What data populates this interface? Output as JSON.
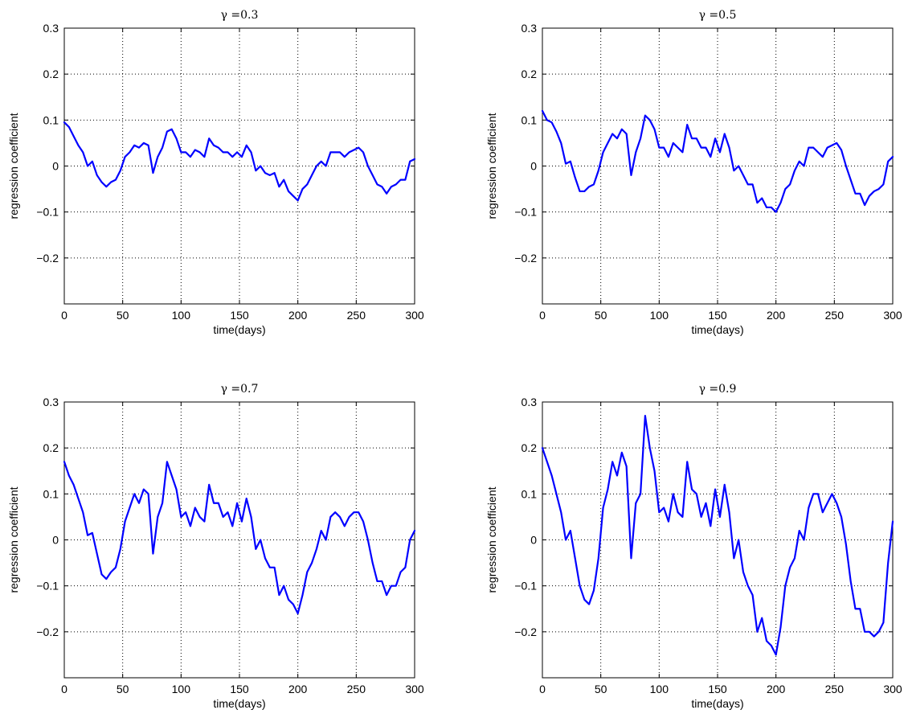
{
  "chart_data": [
    {
      "type": "line",
      "title": "γ =0.3",
      "xlabel": "time(days)",
      "ylabel": "regression coefficient",
      "xlim": [
        0,
        300
      ],
      "ylim": [
        -0.3,
        0.3
      ],
      "xticks": [
        "0",
        "50",
        "100",
        "150",
        "200",
        "250",
        "300"
      ],
      "yticks": [
        "0.3",
        "0.2",
        "0.1",
        "0",
        "−0.1",
        "−0.2"
      ],
      "grid": true,
      "color": "#0000ff",
      "series": [
        {
          "x": [
            0,
            4,
            8,
            12,
            16,
            20,
            24,
            28,
            32,
            36,
            40,
            44,
            48,
            52,
            56,
            60,
            64,
            68,
            72,
            76,
            80,
            84,
            88,
            92,
            96,
            100,
            104,
            108,
            112,
            116,
            120,
            124,
            128,
            132,
            136,
            140,
            144,
            148,
            152,
            156,
            160,
            164,
            168,
            172,
            176,
            180,
            184,
            188,
            192,
            196,
            200,
            204,
            208,
            212,
            216,
            220,
            224,
            228,
            232,
            236,
            240,
            244,
            248,
            252,
            256,
            260,
            264,
            268,
            272,
            276,
            280,
            284,
            288,
            292,
            296,
            300
          ],
          "y": [
            0.095,
            0.085,
            0.065,
            0.045,
            0.03,
            0.0,
            0.01,
            -0.02,
            -0.035,
            -0.045,
            -0.035,
            -0.03,
            -0.01,
            0.02,
            0.03,
            0.045,
            0.04,
            0.05,
            0.045,
            -0.015,
            0.02,
            0.04,
            0.075,
            0.08,
            0.06,
            0.03,
            0.03,
            0.02,
            0.035,
            0.03,
            0.02,
            0.06,
            0.045,
            0.04,
            0.03,
            0.03,
            0.02,
            0.03,
            0.02,
            0.045,
            0.03,
            -0.01,
            0.0,
            -0.015,
            -0.02,
            -0.015,
            -0.045,
            -0.03,
            -0.055,
            -0.065,
            -0.075,
            -0.05,
            -0.04,
            -0.02,
            0.0,
            0.01,
            0.0,
            0.03,
            0.03,
            0.03,
            0.02,
            0.03,
            0.035,
            0.04,
            0.03,
            0.0,
            -0.02,
            -0.04,
            -0.045,
            -0.06,
            -0.045,
            -0.04,
            -0.03,
            -0.03,
            0.01,
            0.015
          ]
        }
      ]
    },
    {
      "type": "line",
      "title": "γ =0.5",
      "xlabel": "time(days)",
      "ylabel": "regression coefficient",
      "xlim": [
        0,
        300
      ],
      "ylim": [
        -0.3,
        0.3
      ],
      "xticks": [
        "0",
        "50",
        "100",
        "150",
        "200",
        "250",
        "300"
      ],
      "yticks": [
        "0.3",
        "0.2",
        "0.1",
        "0",
        "−0.1",
        "−0.2"
      ],
      "grid": true,
      "color": "#0000ff",
      "series": [
        {
          "x": [
            0,
            4,
            8,
            12,
            16,
            20,
            24,
            28,
            32,
            36,
            40,
            44,
            48,
            52,
            56,
            60,
            64,
            68,
            72,
            76,
            80,
            84,
            88,
            92,
            96,
            100,
            104,
            108,
            112,
            116,
            120,
            124,
            128,
            132,
            136,
            140,
            144,
            148,
            152,
            156,
            160,
            164,
            168,
            172,
            176,
            180,
            184,
            188,
            192,
            196,
            200,
            204,
            208,
            212,
            216,
            220,
            224,
            228,
            232,
            236,
            240,
            244,
            248,
            252,
            256,
            260,
            264,
            268,
            272,
            276,
            280,
            284,
            288,
            292,
            296,
            300
          ],
          "y": [
            0.12,
            0.1,
            0.095,
            0.075,
            0.05,
            0.005,
            0.01,
            -0.025,
            -0.055,
            -0.055,
            -0.045,
            -0.04,
            -0.01,
            0.03,
            0.05,
            0.07,
            0.06,
            0.08,
            0.07,
            -0.02,
            0.03,
            0.06,
            0.11,
            0.1,
            0.08,
            0.04,
            0.04,
            0.02,
            0.05,
            0.04,
            0.03,
            0.09,
            0.06,
            0.06,
            0.04,
            0.04,
            0.02,
            0.06,
            0.03,
            0.07,
            0.04,
            -0.01,
            0.0,
            -0.02,
            -0.04,
            -0.04,
            -0.08,
            -0.07,
            -0.09,
            -0.09,
            -0.1,
            -0.08,
            -0.05,
            -0.04,
            -0.01,
            0.01,
            0.0,
            0.04,
            0.04,
            0.03,
            0.02,
            0.04,
            0.045,
            0.05,
            0.035,
            0.0,
            -0.03,
            -0.06,
            -0.06,
            -0.085,
            -0.065,
            -0.055,
            -0.05,
            -0.04,
            0.01,
            0.02
          ]
        }
      ]
    },
    {
      "type": "line",
      "title": "γ =0.7",
      "xlabel": "time(days)",
      "ylabel": "regression coefficient",
      "xlim": [
        0,
        300
      ],
      "ylim": [
        -0.3,
        0.3
      ],
      "xticks": [
        "0",
        "50",
        "100",
        "150",
        "200",
        "250",
        "300"
      ],
      "yticks": [
        "0.3",
        "0.2",
        "0.1",
        "0",
        "−0.1",
        "−0.2"
      ],
      "grid": true,
      "color": "#0000ff",
      "series": [
        {
          "x": [
            0,
            4,
            8,
            12,
            16,
            20,
            24,
            28,
            32,
            36,
            40,
            44,
            48,
            52,
            56,
            60,
            64,
            68,
            72,
            76,
            80,
            84,
            88,
            92,
            96,
            100,
            104,
            108,
            112,
            116,
            120,
            124,
            128,
            132,
            136,
            140,
            144,
            148,
            152,
            156,
            160,
            164,
            168,
            172,
            176,
            180,
            184,
            188,
            192,
            196,
            200,
            204,
            208,
            212,
            216,
            220,
            224,
            228,
            232,
            236,
            240,
            244,
            248,
            252,
            256,
            260,
            264,
            268,
            272,
            276,
            280,
            284,
            288,
            292,
            296,
            300
          ],
          "y": [
            0.17,
            0.14,
            0.12,
            0.09,
            0.06,
            0.01,
            0.015,
            -0.03,
            -0.075,
            -0.085,
            -0.07,
            -0.06,
            -0.02,
            0.04,
            0.07,
            0.1,
            0.08,
            0.11,
            0.1,
            -0.03,
            0.05,
            0.08,
            0.17,
            0.14,
            0.11,
            0.05,
            0.06,
            0.03,
            0.07,
            0.05,
            0.04,
            0.12,
            0.08,
            0.08,
            0.05,
            0.06,
            0.03,
            0.08,
            0.04,
            0.09,
            0.05,
            -0.02,
            0.0,
            -0.04,
            -0.06,
            -0.06,
            -0.12,
            -0.1,
            -0.13,
            -0.14,
            -0.16,
            -0.12,
            -0.07,
            -0.05,
            -0.02,
            0.02,
            0.0,
            0.05,
            0.06,
            0.05,
            0.03,
            0.05,
            0.06,
            0.06,
            0.04,
            0.0,
            -0.05,
            -0.09,
            -0.09,
            -0.12,
            -0.1,
            -0.1,
            -0.07,
            -0.06,
            0.0,
            0.02
          ]
        }
      ]
    },
    {
      "type": "line",
      "title": "γ =0.9",
      "xlabel": "time(days)",
      "ylabel": "regression coefficient",
      "xlim": [
        0,
        300
      ],
      "ylim": [
        -0.3,
        0.3
      ],
      "xticks": [
        "0",
        "50",
        "100",
        "150",
        "200",
        "250",
        "300"
      ],
      "yticks": [
        "0.3",
        "0.2",
        "0.1",
        "0",
        "−0.1",
        "−0.2"
      ],
      "grid": true,
      "color": "#0000ff",
      "series": [
        {
          "x": [
            0,
            4,
            8,
            12,
            16,
            20,
            24,
            28,
            32,
            36,
            40,
            44,
            48,
            52,
            56,
            60,
            64,
            68,
            72,
            76,
            80,
            84,
            88,
            92,
            96,
            100,
            104,
            108,
            112,
            116,
            120,
            124,
            128,
            132,
            136,
            140,
            144,
            148,
            152,
            156,
            160,
            164,
            168,
            172,
            176,
            180,
            184,
            188,
            192,
            196,
            200,
            204,
            208,
            212,
            216,
            220,
            224,
            228,
            232,
            236,
            240,
            244,
            248,
            252,
            256,
            260,
            264,
            268,
            272,
            276,
            280,
            284,
            288,
            292,
            296,
            300
          ],
          "y": [
            0.2,
            0.17,
            0.14,
            0.1,
            0.06,
            0.0,
            0.02,
            -0.04,
            -0.1,
            -0.13,
            -0.14,
            -0.11,
            -0.04,
            0.07,
            0.11,
            0.17,
            0.14,
            0.19,
            0.16,
            -0.04,
            0.08,
            0.1,
            0.27,
            0.2,
            0.15,
            0.06,
            0.07,
            0.04,
            0.1,
            0.06,
            0.05,
            0.17,
            0.11,
            0.1,
            0.05,
            0.08,
            0.03,
            0.11,
            0.05,
            0.12,
            0.06,
            -0.04,
            0.0,
            -0.07,
            -0.1,
            -0.12,
            -0.2,
            -0.17,
            -0.22,
            -0.23,
            -0.25,
            -0.19,
            -0.1,
            -0.06,
            -0.04,
            0.02,
            0.0,
            0.07,
            0.1,
            0.1,
            0.06,
            0.08,
            0.1,
            0.08,
            0.05,
            -0.01,
            -0.09,
            -0.15,
            -0.15,
            -0.2,
            -0.2,
            -0.21,
            -0.2,
            -0.18,
            -0.05,
            0.04
          ]
        }
      ]
    }
  ]
}
